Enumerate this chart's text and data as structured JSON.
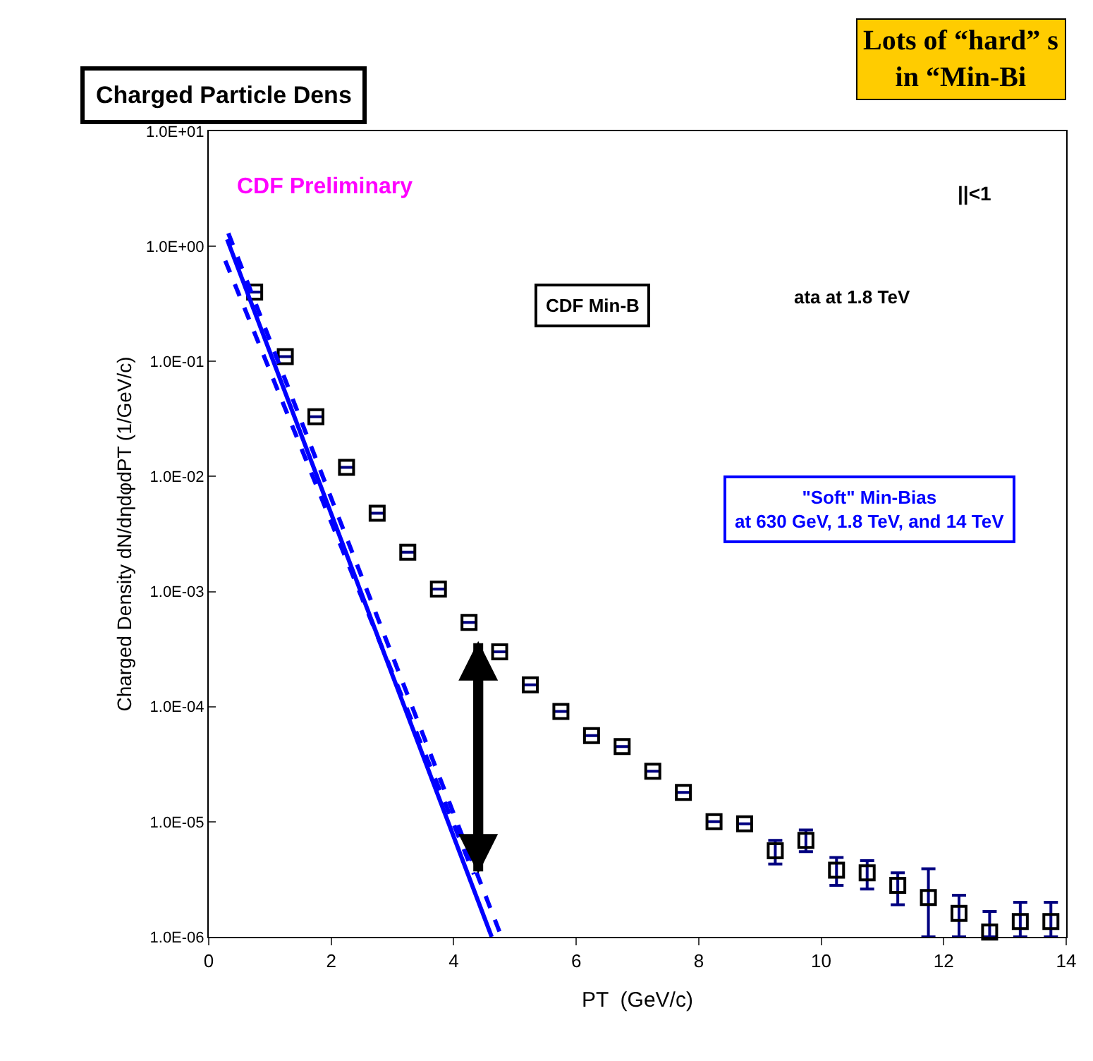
{
  "chart_data": {
    "type": "scatter",
    "title": "Charged Particle Dens",
    "xlabel": "PT  (GeV/c)",
    "ylabel": "Charged Density dN/dηdφdPT (1/GeV/c)",
    "log": "y",
    "xlim": [
      0,
      14
    ],
    "xticks": [
      0,
      2,
      4,
      6,
      8,
      10,
      12,
      14
    ],
    "ylim": [
      1e-06,
      10
    ],
    "yticks": [
      {
        "value": 1e-06,
        "label": "1.0E-06"
      },
      {
        "value": 1e-05,
        "label": "1.0E-05"
      },
      {
        "value": 0.0001,
        "label": "1.0E-04"
      },
      {
        "value": 0.001,
        "label": "1.0E-03"
      },
      {
        "value": 0.01,
        "label": "1.0E-02"
      },
      {
        "value": 0.1,
        "label": "1.0E-01"
      },
      {
        "value": 1,
        "label": "1.0E+00"
      },
      {
        "value": 10,
        "label": "1.0E+01"
      }
    ],
    "series": [
      {
        "marker": "square",
        "color": "#000000",
        "x": [
          0.75,
          1.25,
          1.75,
          2.25,
          2.75,
          3.25,
          3.75,
          4.25,
          4.75,
          5.25,
          5.75,
          6.25,
          6.75,
          7.25,
          7.75,
          8.25,
          8.75,
          9.25,
          9.75,
          10.25,
          10.75,
          11.25,
          11.75,
          12.25,
          12.75,
          13.25,
          13.75
        ],
        "values": [
          0.4,
          0.11,
          0.033,
          0.012,
          0.0048,
          0.0022,
          0.00105,
          0.00054,
          0.0003,
          0.000155,
          9.1e-05,
          5.6e-05,
          4.5e-05,
          2.75e-05,
          1.8e-05,
          1e-05,
          9.6e-06,
          5.6e-06,
          6.9e-06,
          3.8e-06,
          3.6e-06,
          2.8e-06,
          2.2e-06,
          1.6e-06,
          1.1e-06,
          1.36e-06,
          1.36e-06
        ],
        "errors": [
          null,
          null,
          null,
          null,
          null,
          null,
          null,
          null,
          null,
          null,
          null,
          null,
          null,
          null,
          null,
          null,
          null,
          [
            4.3e-06,
            6.9e-06
          ],
          [
            5.5e-06,
            8.5e-06
          ],
          [
            2.8e-06,
            4.9e-06
          ],
          [
            2.6e-06,
            4.6e-06
          ],
          [
            1.9e-06,
            3.6e-06
          ],
          [
            1e-06,
            3.9e-06
          ],
          [
            1e-06,
            2.3e-06
          ],
          [
            1e-06,
            1.66e-06
          ],
          [
            1e-06,
            2e-06
          ],
          [
            1e-06,
            2e-06
          ]
        ]
      },
      {
        "type": "line",
        "line_style": "solid",
        "color": "#0000ff",
        "x": [
          0.3,
          4.62
        ],
        "values": [
          1.15,
          1e-06
        ]
      },
      {
        "type": "line",
        "line_style": "dashed",
        "color": "#0000ff",
        "x": [
          0.27,
          4.33
        ],
        "values": [
          0.75,
          3.5e-06
        ]
      },
      {
        "type": "line",
        "line_style": "dashed",
        "color": "#0000ff",
        "x": [
          0.32,
          4.78
        ],
        "values": [
          1.3,
          1e-06
        ]
      }
    ],
    "annotations": [
      "CDF Preliminary",
      "CDF Min-B",
      "ata at 1.8 TeV",
      "||<1",
      "\"Soft\" Min-Bias\nat 630 GeV, 1.8 TeV, and 14 TeV",
      "Lots of “hard” s\nin “Min-Bi"
    ]
  }
}
